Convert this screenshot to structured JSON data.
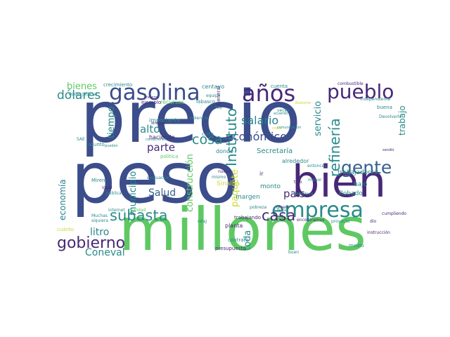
{
  "words": [
    "precio",
    "peso",
    "millones",
    "bien",
    "empresa",
    "gasolina",
    "años",
    "pueblo",
    "gente",
    "gobierno",
    "subasta",
    "casa",
    "salario",
    "económico",
    "Instituto",
    "refinería",
    "país",
    "cosa",
    "dólares",
    "bienes",
    "alto",
    "parte",
    "Salud",
    "litro",
    "Coneval",
    "municipio",
    "economía",
    "tiempo",
    "construcción",
    "paquete",
    "toda",
    "servicio",
    "trabajo",
    "Secretaría",
    "trabajadores",
    "Sinaloa",
    "margen",
    "monto",
    "Robado",
    "bajo",
    "alrededor",
    "crecimiento",
    "centavo",
    "combustible",
    "cuenta",
    "asunto",
    "importante",
    "recursos",
    "Tabasco",
    "haciendo",
    "ejemplo",
    "Miren",
    "Muchas",
    "realidad",
    "política",
    "evaluación",
    "planta",
    "contrato",
    "trabajando",
    "presupuesto",
    "medio",
    "instrucción",
    "proyecto",
    "encontramos",
    "cumpliendo",
    "Poder Judicial",
    "buena",
    "Devolverle",
    "independiente",
    "General",
    "equipo",
    "cada",
    "mismo",
    "donde",
    "nueva",
    "Petróleos",
    "buen",
    "dinero",
    "pobreza",
    "internet",
    "relaj",
    "SAE",
    "igual",
    "pública",
    "cuánto",
    "siquiera",
    "dio",
    "sendió",
    "tipo",
    "acuerdo",
    "comunicación",
    "veces",
    "violencia",
    "condiciones",
    "pueden",
    "mineros",
    "director",
    "Hoy",
    "ir",
    "menor",
    "fecha",
    "costo",
    "entonces",
    "Bastante"
  ]
}
